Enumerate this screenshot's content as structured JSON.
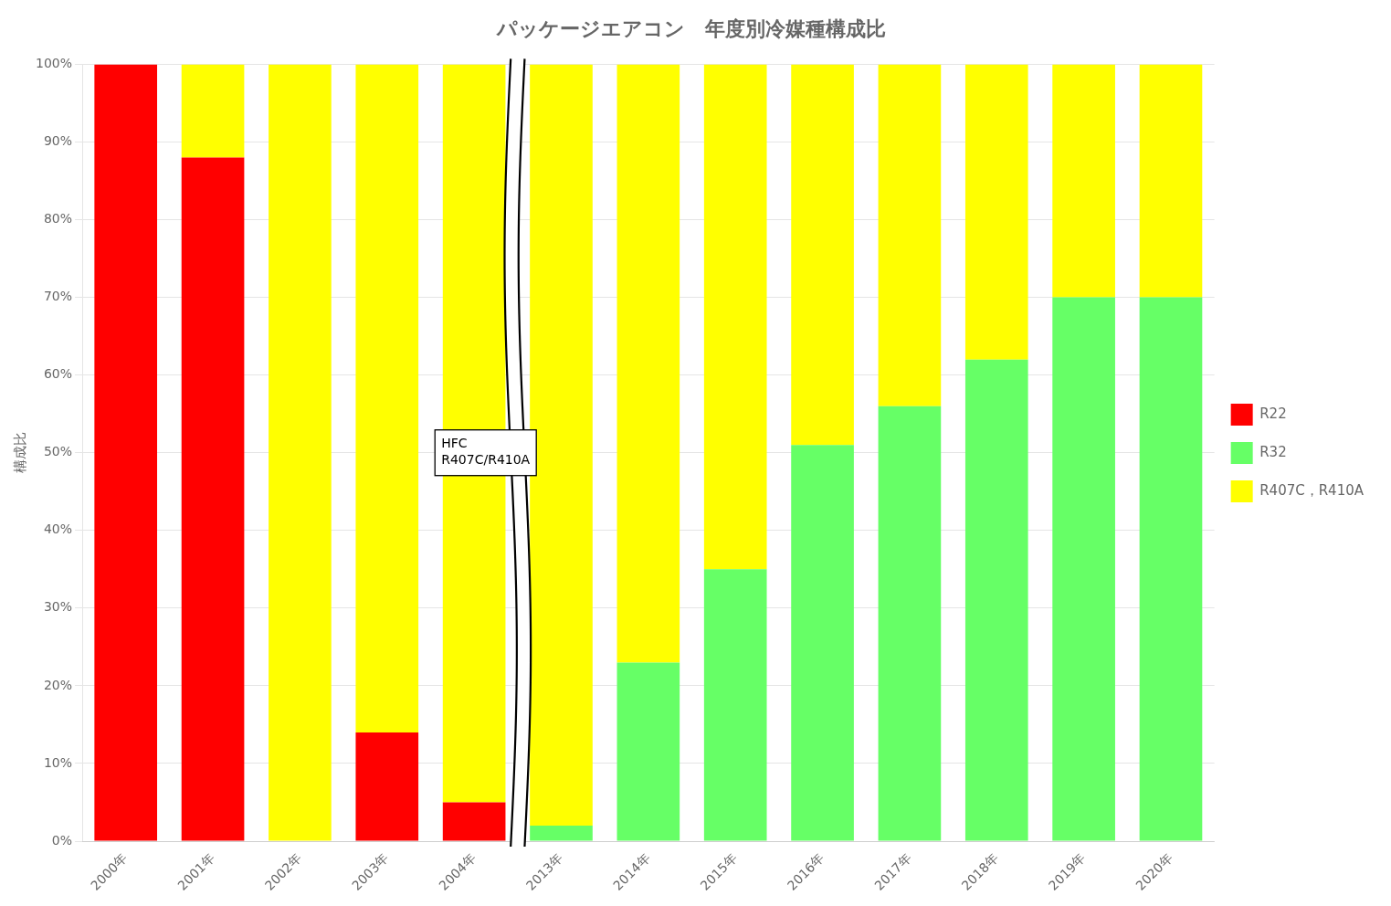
{
  "chart_data": {
    "type": "bar",
    "stacked": true,
    "title": "パッケージエアコン　年度別冷媒種構成比",
    "ylabel": "構成比",
    "categories": [
      "2000年",
      "2001年",
      "2002年",
      "2003年",
      "2004年",
      "2013年",
      "2014年",
      "2015年",
      "2016年",
      "2017年",
      "2018年",
      "2019年",
      "2020年"
    ],
    "series": [
      {
        "name": "R22",
        "color": "#FF0000",
        "values": [
          100,
          88,
          0,
          14,
          5,
          0,
          0,
          0,
          0,
          0,
          0,
          0,
          0
        ]
      },
      {
        "name": "R32",
        "color": "#66FF66",
        "values": [
          0,
          0,
          0,
          0,
          0,
          2,
          23,
          35,
          51,
          56,
          62,
          70,
          70
        ]
      },
      {
        "name": "R407C，R410A",
        "color": "#FFFF00",
        "values": [
          0,
          12,
          100,
          86,
          95,
          98,
          77,
          65,
          49,
          44,
          38,
          30,
          30
        ]
      }
    ],
    "ylim": [
      0,
      100
    ],
    "yticks": [
      {
        "value": 0,
        "label": "0%"
      },
      {
        "value": 10,
        "label": "10%"
      },
      {
        "value": 20,
        "label": "20%"
      },
      {
        "value": 30,
        "label": "30%"
      },
      {
        "value": 40,
        "label": "40%"
      },
      {
        "value": 50,
        "label": "50%"
      },
      {
        "value": 60,
        "label": "60%"
      },
      {
        "value": 70,
        "label": "70%"
      },
      {
        "value": 80,
        "label": "80%"
      },
      {
        "value": 90,
        "label": "90%"
      },
      {
        "value": 100,
        "label": "100%"
      }
    ],
    "grid": true,
    "legend": "right",
    "annotation": "HFC\nR407C/R410A"
  }
}
